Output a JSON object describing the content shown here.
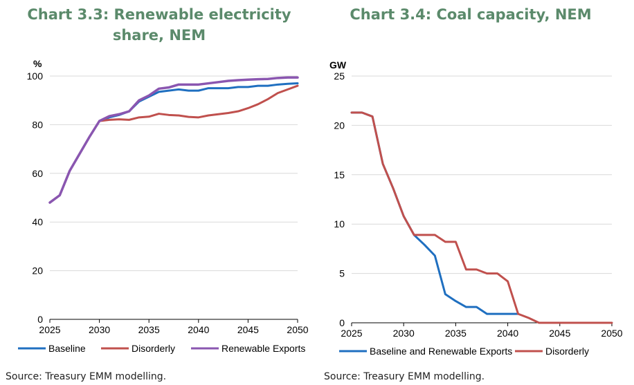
{
  "charts": [
    {
      "title_line1": "Chart 3.3: Renewable electricity",
      "title_line2": "share, NEM",
      "source": "Source: Treasury EMM modelling."
    },
    {
      "title_line1": "Chart 3.4: Coal capacity, NEM",
      "title_line2": "",
      "source": "Source: Treasury EMM modelling."
    }
  ],
  "chart_data": [
    {
      "type": "line",
      "title": "Chart 3.3: Renewable electricity share, NEM",
      "ylabel": "%",
      "xlabel": "",
      "xlim": [
        2025,
        2050
      ],
      "ylim": [
        0,
        100
      ],
      "xticks": [
        2025,
        2030,
        2035,
        2040,
        2045,
        2050
      ],
      "yticks": [
        0,
        20,
        40,
        60,
        80,
        100
      ],
      "grid": "horizontal",
      "legend": "bottom",
      "x": [
        2025,
        2026,
        2027,
        2028,
        2029,
        2030,
        2031,
        2032,
        2033,
        2034,
        2035,
        2036,
        2037,
        2038,
        2039,
        2040,
        2041,
        2042,
        2043,
        2044,
        2045,
        2046,
        2047,
        2048,
        2049,
        2050
      ],
      "series": [
        {
          "name": "Baseline",
          "color": "#1f6fc0",
          "values": [
            48,
            51,
            61,
            68,
            75,
            81.5,
            83,
            84,
            85.5,
            89.5,
            91.5,
            93.5,
            94,
            94.5,
            94,
            94,
            95,
            95,
            95,
            95.5,
            95.5,
            96,
            96,
            96.5,
            96.8,
            97
          ]
        },
        {
          "name": "Disorderly",
          "color": "#c0504d",
          "values": [
            48,
            51,
            61,
            68,
            75,
            81.5,
            82,
            82.2,
            82,
            83,
            83.3,
            84.5,
            84,
            83.8,
            83.2,
            83,
            83.8,
            84.3,
            84.8,
            85.5,
            86.8,
            88.4,
            90.5,
            93,
            94.5,
            96
          ]
        },
        {
          "name": "Renewable Exports",
          "color": "#8a56b0",
          "values": [
            48,
            51,
            61,
            68,
            75,
            81.5,
            83.5,
            84.3,
            85.5,
            90,
            92,
            94.8,
            95.3,
            96.5,
            96.5,
            96.5,
            97,
            97.5,
            98,
            98.3,
            98.5,
            98.7,
            98.8,
            99.2,
            99.4,
            99.4
          ]
        }
      ]
    },
    {
      "type": "line",
      "title": "Chart 3.4: Coal capacity, NEM",
      "ylabel": "GW",
      "xlabel": "",
      "xlim": [
        2025,
        2050
      ],
      "ylim": [
        0,
        25
      ],
      "xticks": [
        2025,
        2030,
        2035,
        2040,
        2045,
        2050
      ],
      "yticks": [
        0,
        5,
        10,
        15,
        20,
        25
      ],
      "grid": "horizontal",
      "legend": "bottom",
      "x": [
        2025,
        2026,
        2027,
        2028,
        2029,
        2030,
        2031,
        2032,
        2033,
        2034,
        2035,
        2036,
        2037,
        2038,
        2039,
        2040,
        2041,
        2042,
        2043,
        2044,
        2045,
        2046,
        2047,
        2048,
        2049,
        2050
      ],
      "series": [
        {
          "name": "Baseline and Renewable Exports",
          "color": "#1f6fc0",
          "values": [
            21.3,
            21.3,
            20.9,
            16.1,
            13.6,
            10.8,
            8.9,
            7.9,
            6.8,
            2.9,
            2.2,
            1.6,
            1.6,
            0.9,
            0.9,
            0.9,
            0.9,
            null,
            null,
            null,
            null,
            null,
            null,
            null,
            null,
            null
          ]
        },
        {
          "name": "Disorderly",
          "color": "#c0504d",
          "values": [
            21.3,
            21.3,
            20.9,
            16.1,
            13.6,
            10.8,
            8.9,
            8.9,
            8.9,
            8.2,
            8.2,
            5.4,
            5.4,
            5.0,
            5.0,
            4.2,
            0.9,
            0.5,
            0,
            0,
            0,
            0,
            0,
            0,
            0,
            0
          ]
        }
      ]
    }
  ]
}
